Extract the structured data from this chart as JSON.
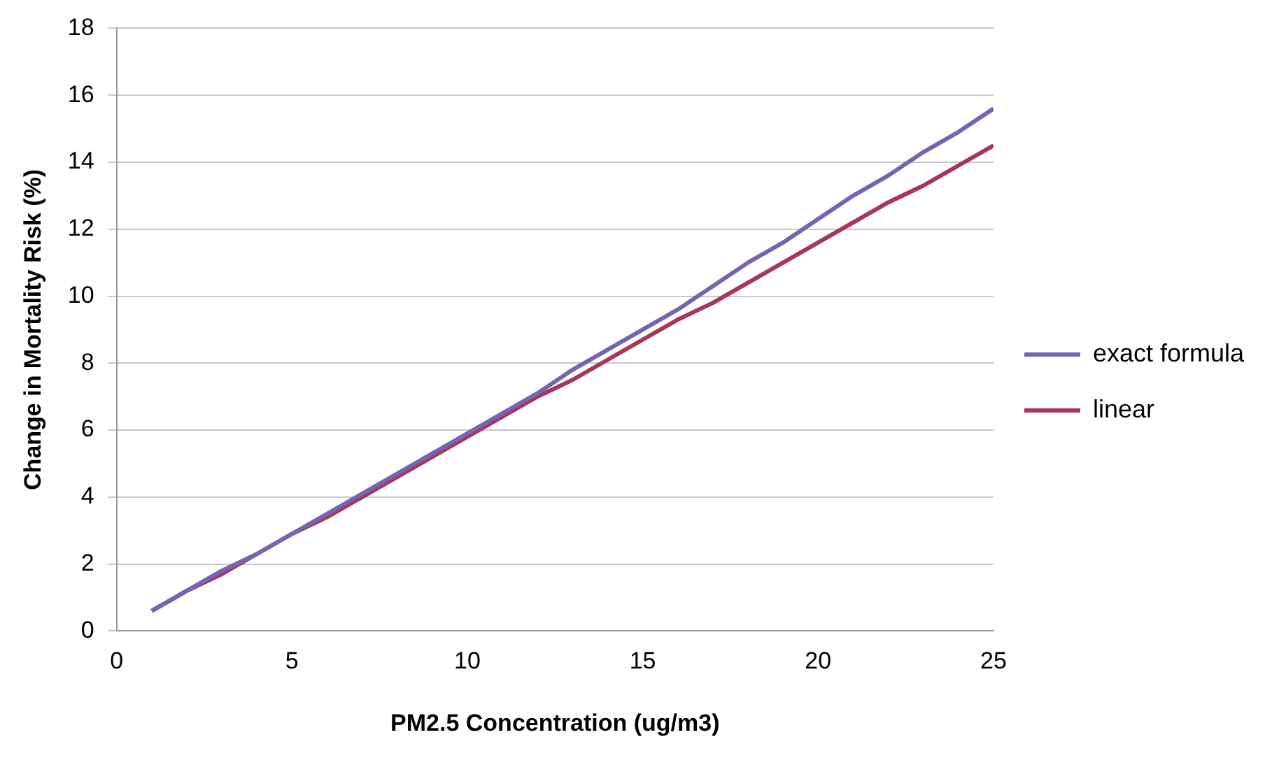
{
  "chart_data": {
    "type": "line",
    "xlabel": "PM2.5 Concentration (ug/m3)",
    "ylabel": "Change in Mortality Risk (%)",
    "x": [
      1,
      2,
      3,
      4,
      5,
      6,
      7,
      8,
      9,
      10,
      11,
      12,
      13,
      14,
      15,
      16,
      17,
      18,
      19,
      20,
      21,
      22,
      23,
      24,
      25
    ],
    "series": [
      {
        "name": "exact formula",
        "color": "#7464b4",
        "values": [
          0.6,
          1.2,
          1.8,
          2.3,
          2.9,
          3.5,
          4.1,
          4.7,
          5.3,
          5.9,
          6.5,
          7.1,
          7.8,
          8.4,
          9.0,
          9.6,
          10.3,
          11.0,
          11.6,
          12.3,
          13.0,
          13.6,
          14.3,
          14.9,
          15.6
        ]
      },
      {
        "name": "linear",
        "color": "#a8355a",
        "values": [
          0.6,
          1.2,
          1.7,
          2.3,
          2.9,
          3.4,
          4.0,
          4.6,
          5.2,
          5.8,
          6.4,
          7.0,
          7.5,
          8.1,
          8.7,
          9.3,
          9.8,
          10.4,
          11.0,
          11.6,
          12.2,
          12.8,
          13.3,
          13.9,
          14.5
        ]
      }
    ],
    "xlim": [
      0,
      25
    ],
    "xticks": [
      0,
      5,
      10,
      15,
      20,
      25
    ],
    "ylim": [
      0,
      18
    ],
    "yticks": [
      0,
      2,
      4,
      6,
      8,
      10,
      12,
      14,
      16,
      18
    ],
    "grid": "y",
    "legend": "right",
    "marker": "none",
    "line_style": "solid"
  }
}
